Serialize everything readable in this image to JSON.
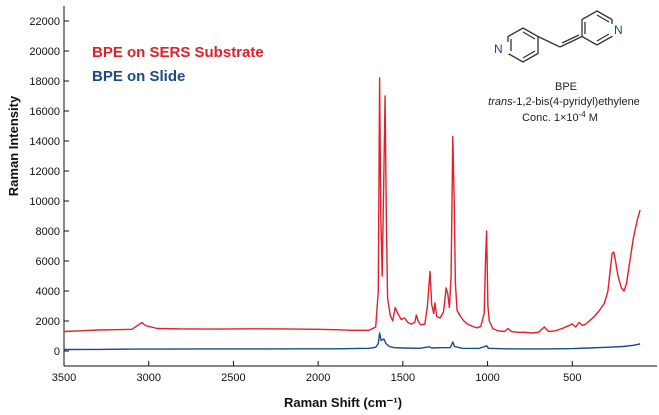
{
  "chart_data": {
    "type": "line",
    "xlabel": "Raman Shift (cm⁻¹)",
    "ylabel": "Raman Intensity",
    "xlim": [
      3500,
      0
    ],
    "ylim": [
      -1000,
      23000
    ],
    "xticks": [
      3500,
      3000,
      2500,
      2000,
      1500,
      1000,
      500
    ],
    "yticks": [
      0,
      2000,
      4000,
      6000,
      8000,
      10000,
      12000,
      14000,
      16000,
      18000,
      20000,
      22000
    ],
    "legend_position": "top-left",
    "grid": false,
    "series": [
      {
        "name": "BPE on SERS Substrate",
        "color": "#e0202c",
        "points": [
          [
            3500,
            1300
          ],
          [
            3400,
            1350
          ],
          [
            3300,
            1400
          ],
          [
            3200,
            1420
          ],
          [
            3100,
            1450
          ],
          [
            3060,
            1750
          ],
          [
            3040,
            1900
          ],
          [
            3020,
            1700
          ],
          [
            2950,
            1500
          ],
          [
            2800,
            1470
          ],
          [
            2600,
            1460
          ],
          [
            2400,
            1480
          ],
          [
            2200,
            1470
          ],
          [
            2000,
            1450
          ],
          [
            1900,
            1420
          ],
          [
            1800,
            1380
          ],
          [
            1700,
            1380
          ],
          [
            1660,
            1600
          ],
          [
            1645,
            4000
          ],
          [
            1637,
            18200
          ],
          [
            1630,
            9000
          ],
          [
            1622,
            5000
          ],
          [
            1612,
            12000
          ],
          [
            1605,
            17000
          ],
          [
            1598,
            9000
          ],
          [
            1590,
            3500
          ],
          [
            1575,
            2400
          ],
          [
            1560,
            2000
          ],
          [
            1545,
            2900
          ],
          [
            1530,
            2500
          ],
          [
            1510,
            2100
          ],
          [
            1490,
            2200
          ],
          [
            1470,
            1900
          ],
          [
            1450,
            1800
          ],
          [
            1430,
            1900
          ],
          [
            1420,
            2400
          ],
          [
            1410,
            2000
          ],
          [
            1395,
            1750
          ],
          [
            1370,
            1800
          ],
          [
            1355,
            3000
          ],
          [
            1340,
            5300
          ],
          [
            1330,
            3100
          ],
          [
            1318,
            2500
          ],
          [
            1310,
            3200
          ],
          [
            1300,
            2300
          ],
          [
            1280,
            2200
          ],
          [
            1260,
            2600
          ],
          [
            1245,
            4200
          ],
          [
            1235,
            3800
          ],
          [
            1225,
            2900
          ],
          [
            1215,
            5000
          ],
          [
            1205,
            14300
          ],
          [
            1197,
            10000
          ],
          [
            1190,
            4500
          ],
          [
            1180,
            2700
          ],
          [
            1160,
            2300
          ],
          [
            1140,
            2000
          ],
          [
            1120,
            1800
          ],
          [
            1100,
            1700
          ],
          [
            1080,
            1600
          ],
          [
            1060,
            1550
          ],
          [
            1040,
            1650
          ],
          [
            1020,
            2500
          ],
          [
            1012,
            6000
          ],
          [
            1006,
            8000
          ],
          [
            998,
            3000
          ],
          [
            990,
            2000
          ],
          [
            970,
            1500
          ],
          [
            940,
            1350
          ],
          [
            900,
            1300
          ],
          [
            880,
            1500
          ],
          [
            860,
            1300
          ],
          [
            820,
            1250
          ],
          [
            780,
            1250
          ],
          [
            740,
            1200
          ],
          [
            700,
            1250
          ],
          [
            665,
            1600
          ],
          [
            640,
            1300
          ],
          [
            600,
            1350
          ],
          [
            560,
            1500
          ],
          [
            530,
            1650
          ],
          [
            500,
            1800
          ],
          [
            480,
            1600
          ],
          [
            460,
            1900
          ],
          [
            440,
            1700
          ],
          [
            420,
            1800
          ],
          [
            400,
            2000
          ],
          [
            370,
            2300
          ],
          [
            340,
            2700
          ],
          [
            310,
            3200
          ],
          [
            290,
            4000
          ],
          [
            275,
            5500
          ],
          [
            265,
            6500
          ],
          [
            255,
            6600
          ],
          [
            245,
            6000
          ],
          [
            230,
            5000
          ],
          [
            210,
            4200
          ],
          [
            195,
            4000
          ],
          [
            180,
            4500
          ],
          [
            160,
            6000
          ],
          [
            140,
            7500
          ],
          [
            115,
            8800
          ],
          [
            100,
            9400
          ]
        ]
      },
      {
        "name": "BPE on Slide",
        "color": "#1b4b84",
        "points": [
          [
            3500,
            100
          ],
          [
            3300,
            110
          ],
          [
            3100,
            130
          ],
          [
            2900,
            130
          ],
          [
            2700,
            140
          ],
          [
            2500,
            140
          ],
          [
            2300,
            140
          ],
          [
            2100,
            150
          ],
          [
            1900,
            150
          ],
          [
            1700,
            180
          ],
          [
            1660,
            250
          ],
          [
            1645,
            500
          ],
          [
            1637,
            1200
          ],
          [
            1628,
            700
          ],
          [
            1612,
            800
          ],
          [
            1600,
            500
          ],
          [
            1580,
            300
          ],
          [
            1550,
            220
          ],
          [
            1500,
            200
          ],
          [
            1400,
            180
          ],
          [
            1345,
            280
          ],
          [
            1330,
            200
          ],
          [
            1280,
            220
          ],
          [
            1220,
            230
          ],
          [
            1205,
            600
          ],
          [
            1195,
            300
          ],
          [
            1150,
            180
          ],
          [
            1050,
            170
          ],
          [
            1005,
            350
          ],
          [
            995,
            180
          ],
          [
            900,
            150
          ],
          [
            800,
            140
          ],
          [
            700,
            140
          ],
          [
            600,
            150
          ],
          [
            500,
            160
          ],
          [
            400,
            200
          ],
          [
            300,
            250
          ],
          [
            200,
            300
          ],
          [
            140,
            380
          ],
          [
            110,
            450
          ],
          [
            100,
            480
          ]
        ]
      }
    ],
    "molecule": {
      "name": "BPE",
      "iupac_prefix": "trans",
      "iupac_rest": "-1,2-bis(4-pyridyl)ethylene",
      "conc_label": "Conc. 1×10",
      "conc_exp": "-4",
      "conc_unit": " M",
      "atom_label": "N"
    }
  }
}
